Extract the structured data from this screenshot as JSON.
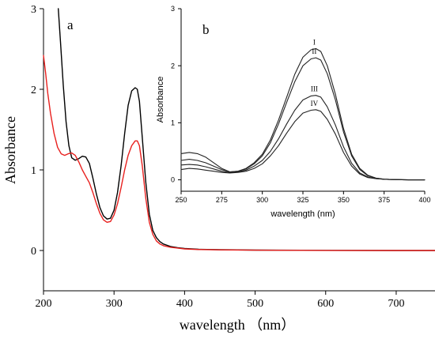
{
  "chart_data": [
    {
      "panel": "a",
      "type": "line",
      "panel_label": "a",
      "xlabel": "wavelength （nm）",
      "ylabel": "Absorbance",
      "xlim": [
        200,
        755
      ],
      "ylim": [
        -0.5,
        3
      ],
      "xticks": [
        200,
        300,
        400,
        500,
        600,
        700
      ],
      "yticks": [
        0,
        1,
        2,
        3
      ],
      "grid": false,
      "series": [
        {
          "color": "#000000",
          "x": [
            221,
            224,
            228,
            232,
            236,
            240,
            245,
            250,
            255,
            260,
            265,
            270,
            275,
            280,
            285,
            290,
            295,
            300,
            305,
            310,
            315,
            320,
            325,
            330,
            333,
            336,
            340,
            345,
            350,
            355,
            360,
            365,
            370,
            380,
            390,
            400,
            420,
            450,
            500,
            600,
            700,
            755
          ],
          "y": [
            3.0,
            2.6,
            2.05,
            1.6,
            1.3,
            1.15,
            1.12,
            1.14,
            1.17,
            1.16,
            1.08,
            0.9,
            0.7,
            0.53,
            0.43,
            0.39,
            0.4,
            0.5,
            0.72,
            1.05,
            1.45,
            1.8,
            1.98,
            2.02,
            2.0,
            1.85,
            1.4,
            0.85,
            0.45,
            0.25,
            0.16,
            0.11,
            0.08,
            0.05,
            0.035,
            0.025,
            0.015,
            0.01,
            0.005,
            0.002,
            0.0,
            0.0
          ]
        },
        {
          "color": "#e8201e",
          "x": [
            200,
            203,
            206,
            210,
            215,
            220,
            225,
            230,
            235,
            240,
            245,
            250,
            255,
            260,
            265,
            270,
            275,
            280,
            285,
            290,
            295,
            300,
            305,
            310,
            315,
            320,
            325,
            330,
            333,
            336,
            340,
            345,
            350,
            355,
            360,
            365,
            370,
            380,
            390,
            400,
            420,
            450,
            500,
            600,
            700,
            755
          ],
          "y": [
            2.42,
            2.2,
            1.95,
            1.7,
            1.45,
            1.28,
            1.2,
            1.18,
            1.2,
            1.21,
            1.18,
            1.1,
            1.0,
            0.92,
            0.84,
            0.72,
            0.58,
            0.46,
            0.38,
            0.35,
            0.36,
            0.44,
            0.58,
            0.78,
            1.0,
            1.18,
            1.3,
            1.36,
            1.36,
            1.3,
            1.05,
            0.65,
            0.35,
            0.2,
            0.12,
            0.08,
            0.06,
            0.04,
            0.03,
            0.02,
            0.012,
            0.008,
            0.004,
            0.001,
            0.0,
            0.0
          ]
        }
      ]
    },
    {
      "panel": "b",
      "type": "line",
      "panel_label": "b",
      "xlabel": "wavelength (nm)",
      "ylabel": "Absorbance",
      "xlim": [
        250,
        400
      ],
      "ylim": [
        -0.2,
        3
      ],
      "xticks": [
        250,
        275,
        300,
        325,
        350,
        375,
        400
      ],
      "yticks": [
        0,
        1,
        2,
        3
      ],
      "grid": false,
      "series_labels": [
        "I",
        "II",
        "III",
        "IV"
      ],
      "series": [
        {
          "label": "I",
          "color": "#222222",
          "x": [
            250,
            255,
            260,
            265,
            270,
            275,
            280,
            285,
            290,
            295,
            300,
            305,
            310,
            315,
            320,
            325,
            330,
            333,
            336,
            340,
            345,
            350,
            355,
            360,
            365,
            370,
            375,
            380,
            390,
            400
          ],
          "y": [
            0.46,
            0.48,
            0.46,
            0.4,
            0.3,
            0.2,
            0.14,
            0.15,
            0.2,
            0.3,
            0.45,
            0.7,
            1.05,
            1.45,
            1.85,
            2.15,
            2.28,
            2.3,
            2.25,
            2.0,
            1.5,
            0.9,
            0.45,
            0.2,
            0.08,
            0.03,
            0.01,
            0.005,
            0.0,
            0.0
          ]
        },
        {
          "label": "II",
          "color": "#222222",
          "x": [
            250,
            255,
            260,
            265,
            270,
            275,
            280,
            285,
            290,
            295,
            300,
            305,
            310,
            315,
            320,
            325,
            330,
            333,
            336,
            340,
            345,
            350,
            355,
            360,
            365,
            370,
            375,
            380,
            390,
            400
          ],
          "y": [
            0.34,
            0.36,
            0.34,
            0.3,
            0.24,
            0.18,
            0.14,
            0.15,
            0.19,
            0.28,
            0.42,
            0.65,
            0.98,
            1.36,
            1.72,
            2.0,
            2.12,
            2.14,
            2.1,
            1.86,
            1.4,
            0.84,
            0.42,
            0.18,
            0.07,
            0.03,
            0.01,
            0.005,
            0.0,
            0.0
          ]
        },
        {
          "label": "III",
          "color": "#222222",
          "x": [
            250,
            255,
            260,
            265,
            270,
            275,
            280,
            285,
            290,
            295,
            300,
            305,
            310,
            315,
            320,
            325,
            330,
            333,
            336,
            340,
            345,
            350,
            355,
            360,
            365,
            370,
            375,
            380,
            390,
            400
          ],
          "y": [
            0.26,
            0.27,
            0.26,
            0.23,
            0.19,
            0.15,
            0.13,
            0.14,
            0.17,
            0.24,
            0.34,
            0.5,
            0.72,
            0.98,
            1.22,
            1.4,
            1.47,
            1.48,
            1.45,
            1.28,
            0.96,
            0.58,
            0.29,
            0.12,
            0.05,
            0.02,
            0.01,
            0.005,
            0.0,
            0.0
          ]
        },
        {
          "label": "IV",
          "color": "#222222",
          "x": [
            250,
            255,
            260,
            265,
            270,
            275,
            280,
            285,
            290,
            295,
            300,
            305,
            310,
            315,
            320,
            325,
            330,
            333,
            336,
            340,
            345,
            350,
            355,
            360,
            365,
            370,
            375,
            380,
            390,
            400
          ],
          "y": [
            0.18,
            0.2,
            0.19,
            0.17,
            0.15,
            0.13,
            0.12,
            0.13,
            0.15,
            0.2,
            0.28,
            0.42,
            0.6,
            0.82,
            1.02,
            1.17,
            1.22,
            1.23,
            1.2,
            1.06,
            0.8,
            0.48,
            0.24,
            0.1,
            0.04,
            0.02,
            0.01,
            0.005,
            0.0,
            0.0
          ]
        }
      ]
    }
  ]
}
